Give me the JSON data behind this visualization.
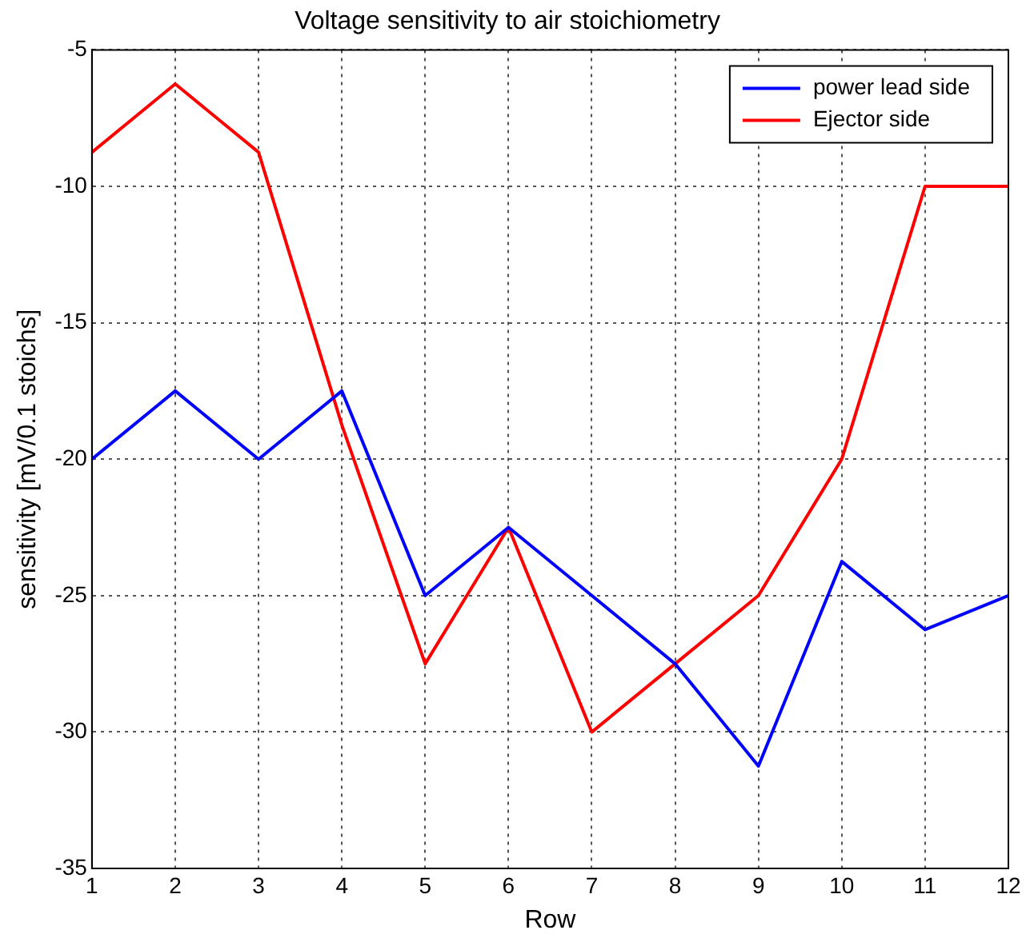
{
  "chart_data": {
    "type": "line",
    "title": "Voltage sensitivity to air stoichiometry",
    "xlabel": "Row",
    "ylabel": "sensitivity [mV/0.1 stoichs]",
    "x": [
      1,
      2,
      3,
      4,
      5,
      6,
      7,
      8,
      9,
      10,
      11,
      12
    ],
    "series": [
      {
        "name": "power lead side",
        "color": "#0000ff",
        "values": [
          -20,
          -17.5,
          -20,
          -17.5,
          -25,
          -22.5,
          -25,
          -27.5,
          -31.25,
          -23.75,
          -26.25,
          -25
        ]
      },
      {
        "name": "Ejector side",
        "color": "#ff0000",
        "values": [
          -8.75,
          -6.25,
          -8.75,
          -18.75,
          -27.5,
          -22.5,
          -30,
          -27.5,
          -25,
          -20,
          -10,
          -10
        ]
      }
    ],
    "xlim": [
      1,
      12
    ],
    "xticks": [
      1,
      2,
      3,
      4,
      5,
      6,
      7,
      8,
      9,
      10,
      11,
      12
    ],
    "ylim": [
      -35,
      -5
    ],
    "yticks": [
      -35,
      -30,
      -25,
      -20,
      -15,
      -10,
      -5
    ],
    "grid": true,
    "legend": "top right",
    "marker": "none",
    "line_style": "solid"
  }
}
